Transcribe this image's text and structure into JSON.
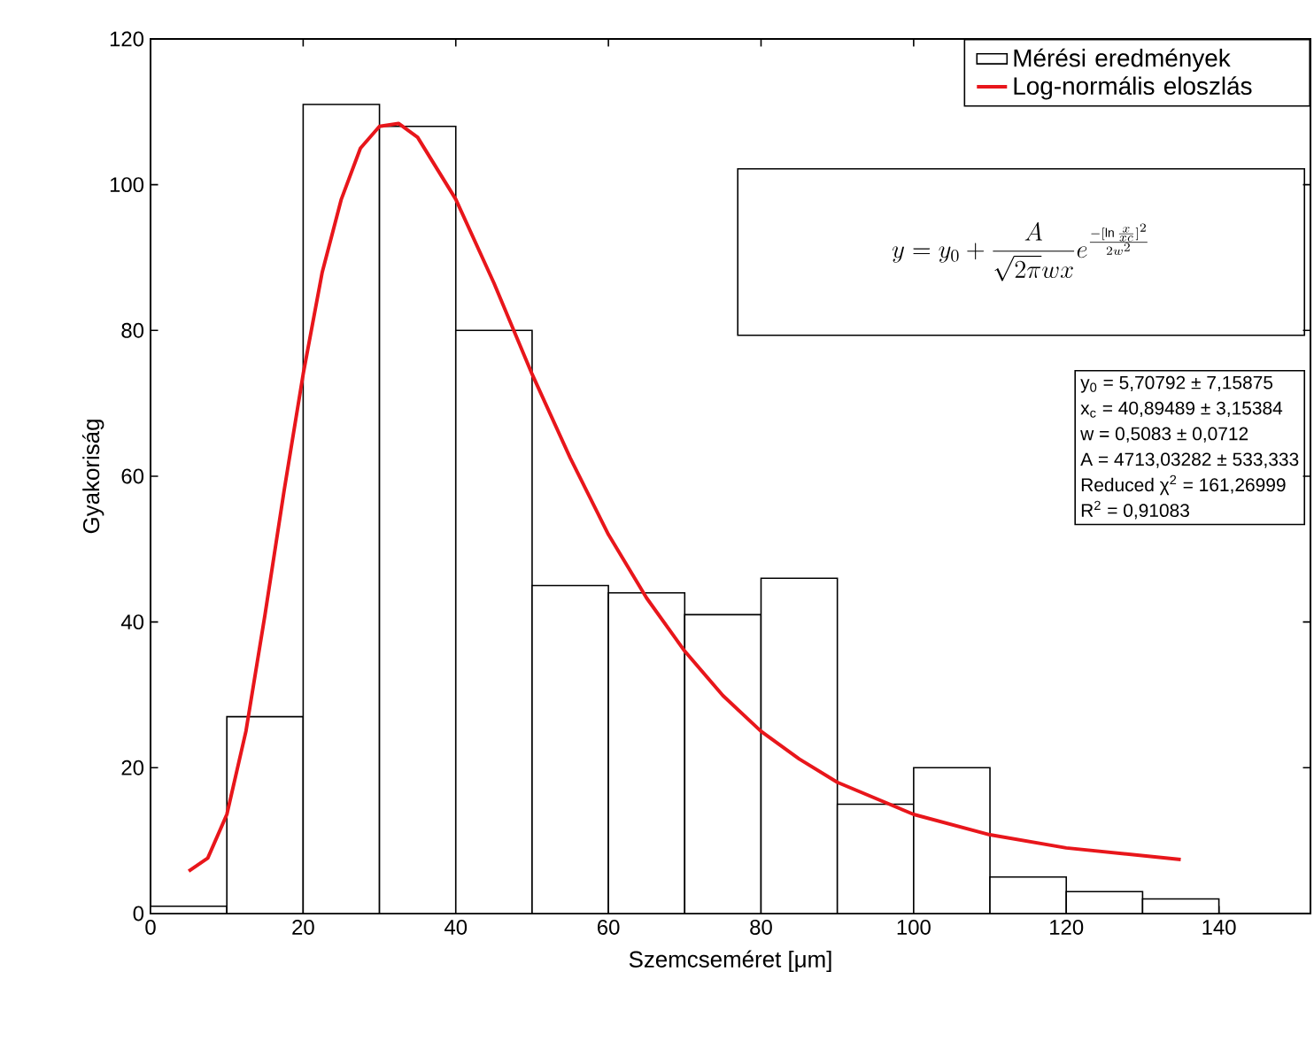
{
  "chart_data": {
    "type": "histogram",
    "xlabel": "Szemcseméret [μm]",
    "ylabel": "Gyakoriság",
    "legend": "top right",
    "xlim": [
      0,
      152
    ],
    "ylim": [
      0,
      120
    ],
    "xticks": [
      0,
      20,
      40,
      60,
      80,
      100,
      120,
      140
    ],
    "yticks": [
      0,
      20,
      40,
      60,
      80,
      100,
      120
    ],
    "series": [
      {
        "name": "Mérési eredmények",
        "color": "#000000",
        "bins": [
          0,
          10,
          20,
          30,
          40,
          50,
          60,
          70,
          80,
          90,
          100,
          110,
          120,
          130,
          140
        ],
        "values": [
          1,
          27,
          111,
          108,
          80,
          45,
          44,
          41,
          46,
          15,
          20,
          5,
          3,
          2
        ]
      },
      {
        "name": "Log-normális eloszlás",
        "type": "line",
        "color": "#e8161b",
        "x": [
          5,
          7.5,
          10,
          12.5,
          15,
          17.5,
          20,
          22.5,
          25,
          27.5,
          30,
          32.5,
          35,
          40,
          45,
          50,
          55,
          60,
          65,
          70,
          75,
          80,
          85,
          90,
          100,
          110,
          120,
          135
        ],
        "values": [
          5.8,
          7.6,
          13.6,
          25,
          41,
          58,
          74,
          88,
          98,
          105,
          108,
          108.4,
          106.5,
          98,
          86.5,
          74,
          62.5,
          52,
          43.3,
          36,
          29.9,
          25,
          21.2,
          18,
          13.6,
          10.8,
          9,
          7.4
        ]
      }
    ],
    "annotations": [
      "y = y_{0} + \\frac{A}{\\sqrt{2\\pi}wx}e^{\\frac{-[\\ln\\frac{x}{xc}]^{2}}{2w^{2}}}",
      "y$_{0}$ = 5,70792 ± 7,15875",
      "x$_{c}$ = 40,89489 ± 3,15384",
      "w = 0,5083 ± 0,0712",
      "A = 4713,03282 ± 533,333",
      "Reduced χ$^{2}$ = 161,26999",
      "R$^{2}$ = 0,91083"
    ]
  }
}
